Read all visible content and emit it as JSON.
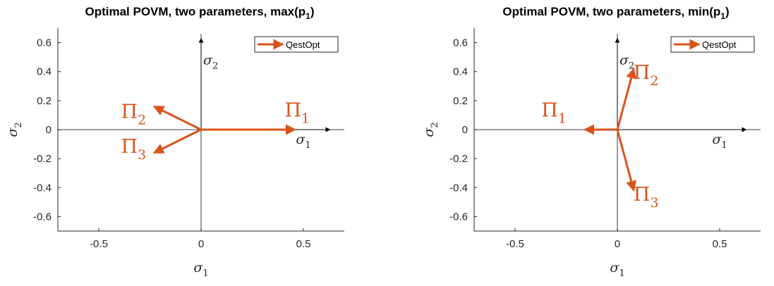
{
  "colors": {
    "vector": "#d95319",
    "axis": "#262626",
    "frame": "#262626"
  },
  "chart_data": [
    {
      "type": "line",
      "title": "Optimal POVM, two parameters, max(p",
      "title_sub": "1",
      "title_close": ")",
      "xlabel": "σ",
      "xlabel_sub": "1",
      "ylabel": "σ",
      "ylabel_sub": "2",
      "xlim": [
        -0.7,
        0.7
      ],
      "ylim": [
        -0.7,
        0.7
      ],
      "xticks": [
        -0.5,
        0,
        0.5
      ],
      "xtick_labels": [
        "-0.5",
        "0",
        "0.5"
      ],
      "yticks": [
        -0.6,
        -0.4,
        -0.2,
        0,
        0.2,
        0.4,
        0.6
      ],
      "ytick_labels": [
        "-0.6",
        "-0.4",
        "-0.2",
        "0",
        "0.2",
        "0.4",
        "0.6"
      ],
      "axis_label_x": "σ",
      "axis_label_x_sub": "1",
      "axis_label_y": "σ",
      "axis_label_y_sub": "2",
      "legend": {
        "entries": [
          "QestOpt"
        ],
        "placement": "top-right"
      },
      "series": [
        {
          "name": "QestOpt",
          "vectors": [
            {
              "label": "Π",
              "label_sub": "1",
              "x": 0.46,
              "y": 0.0,
              "label_x": 0.47,
              "label_y": 0.09
            },
            {
              "label": "Π",
              "label_sub": "2",
              "x": -0.23,
              "y": 0.16,
              "label_x": -0.33,
              "label_y": 0.08
            },
            {
              "label": "Π",
              "label_sub": "3",
              "x": -0.23,
              "y": -0.16,
              "label_x": -0.33,
              "label_y": -0.16
            }
          ]
        }
      ]
    },
    {
      "type": "line",
      "title": "Optimal POVM, two parameters, min(p",
      "title_sub": "1",
      "title_close": ")",
      "xlabel": "σ",
      "xlabel_sub": "1",
      "ylabel": "σ",
      "ylabel_sub": "2",
      "xlim": [
        -0.7,
        0.7
      ],
      "ylim": [
        -0.7,
        0.7
      ],
      "xticks": [
        -0.5,
        0,
        0.5
      ],
      "xtick_labels": [
        "-0.5",
        "0",
        "0.5"
      ],
      "yticks": [
        -0.6,
        -0.4,
        -0.2,
        0,
        0.2,
        0.4,
        0.6
      ],
      "ytick_labels": [
        "-0.6",
        "-0.4",
        "-0.2",
        "0",
        "0.2",
        "0.4",
        "0.6"
      ],
      "axis_label_x": "σ",
      "axis_label_x_sub": "1",
      "axis_label_y": "σ",
      "axis_label_y_sub": "2",
      "legend": {
        "entries": [
          "QestOpt"
        ],
        "placement": "top-right"
      },
      "series": [
        {
          "name": "QestOpt",
          "vectors": [
            {
              "label": "Π",
              "label_sub": "1",
              "x": -0.16,
              "y": 0.0,
              "label_x": -0.31,
              "label_y": 0.09
            },
            {
              "label": "Π",
              "label_sub": "2",
              "x": 0.08,
              "y": 0.42,
              "label_x": 0.14,
              "label_y": 0.35
            },
            {
              "label": "Π",
              "label_sub": "3",
              "x": 0.08,
              "y": -0.42,
              "label_x": 0.14,
              "label_y": -0.49
            }
          ]
        }
      ]
    }
  ]
}
